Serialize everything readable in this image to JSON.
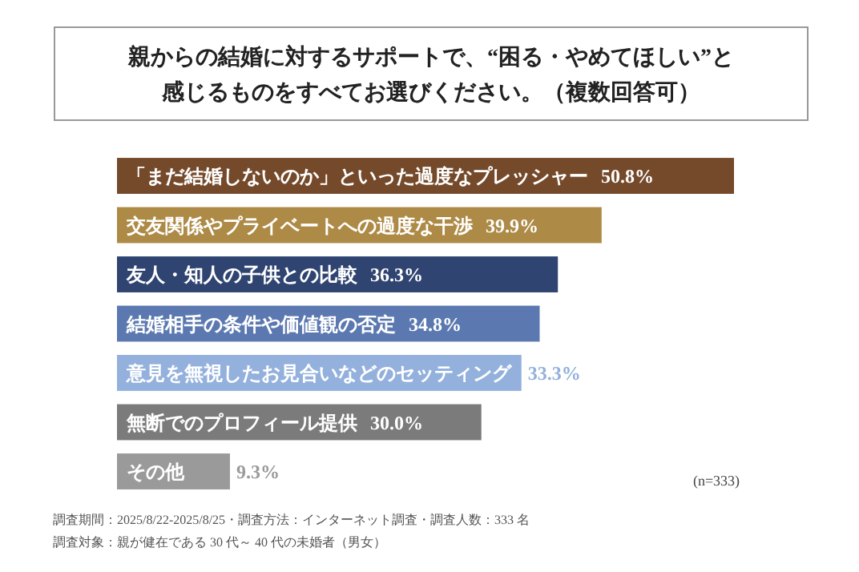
{
  "chart_data": {
    "type": "bar",
    "orientation": "horizontal",
    "title": "親からの結婚に対するサポートで、“困る・やめてほしい”と感じるものをすべてお選びください。（複数回答可）",
    "categories": [
      "「まだ結婚しないのか」といった過度なプレッシャー",
      "交友関係やプライベートへの過度な干渉",
      "友人・知人の子供との比較",
      "結婚相手の条件や価値観の否定",
      "意見を無視したお見合いなどのセッティング",
      "無断でのプロフィール提供",
      "その他"
    ],
    "values": [
      50.8,
      39.9,
      36.3,
      34.8,
      33.3,
      30.0,
      9.3
    ],
    "value_labels": [
      "50.8%",
      "39.9%",
      "36.3%",
      "34.8%",
      "33.3%",
      "30.0%",
      "9.3%"
    ],
    "colors": [
      "#754a2b",
      "#ad8a45",
      "#2f4470",
      "#5b79b0",
      "#93b1dc",
      "#7b7b7b",
      "#9a9a9a"
    ],
    "annotations": [
      "(n=333)",
      "調査期間：2025/8/22-2025/8/25・調査方法：インターネット調査・調査人数：333 名",
      "調査対象：親が健在である 30 代～ 40 代の未婚者（男女）"
    ]
  }
}
